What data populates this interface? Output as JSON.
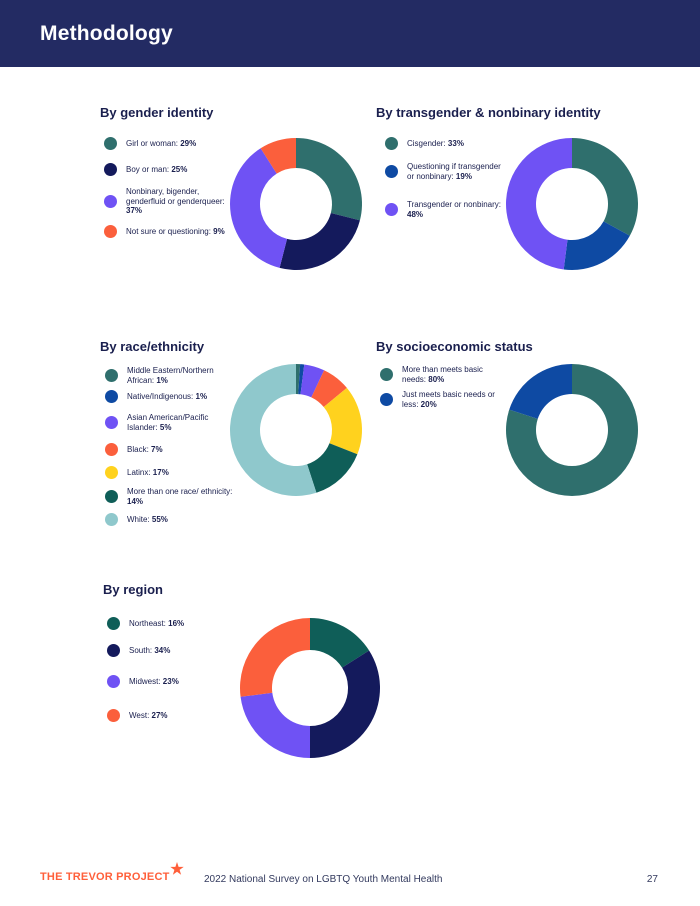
{
  "header": {
    "title": "Methodology"
  },
  "colors": {
    "header_bg": "#232b63",
    "teal": "#2f6f6d",
    "navy": "#141a5c",
    "purple": "#6f52f4",
    "coral": "#fb5f3c",
    "blue": "#0e4aa3",
    "yellow": "#ffd21e",
    "darkteal": "#0f5e58",
    "lightteal": "#8fc8cc",
    "brand": "#ff5f3a"
  },
  "sections": {
    "gender": {
      "title": "By gender identity",
      "items": [
        {
          "label": "Girl or woman: ",
          "value": "29%",
          "color": "#2f6f6d"
        },
        {
          "label": "Boy or man: ",
          "value": "25%",
          "color": "#141a5c"
        },
        {
          "label": "Nonbinary, bigender, genderfluid or genderqueer: ",
          "value": "37%",
          "color": "#6f52f4"
        },
        {
          "label": "Not sure or questioning: ",
          "value": "9%",
          "color": "#fb5f3c"
        }
      ]
    },
    "trans": {
      "title": "By transgender & nonbinary identity",
      "items": [
        {
          "label": "Cisgender: ",
          "value": "33%",
          "color": "#2f6f6d"
        },
        {
          "label": "Questioning if transgender or nonbinary: ",
          "value": "19%",
          "color": "#0e4aa3"
        },
        {
          "label": "Transgender or nonbinary: ",
          "value": "48%",
          "color": "#6f52f4"
        }
      ]
    },
    "race": {
      "title": "By race/ethnicity",
      "items": [
        {
          "label": "Middle Eastern/Northern African: ",
          "value": "1%",
          "color": "#2f6f6d"
        },
        {
          "label": "Native/Indigenous: ",
          "value": "1%",
          "color": "#0e4aa3"
        },
        {
          "label": "Asian American/Pacific Islander: ",
          "value": "5%",
          "color": "#6f52f4"
        },
        {
          "label": "Black: ",
          "value": "7%",
          "color": "#fb5f3c"
        },
        {
          "label": "Latinx: ",
          "value": "17%",
          "color": "#ffd21e"
        },
        {
          "label": "More than one race/ ethnicity: ",
          "value": "14%",
          "color": "#0f5e58"
        },
        {
          "label": "White: ",
          "value": "55%",
          "color": "#8fc8cc"
        }
      ]
    },
    "ses": {
      "title": "By socioeconomic status",
      "items": [
        {
          "label": "More than meets basic needs: ",
          "value": "80%",
          "color": "#2f6f6d"
        },
        {
          "label": "Just meets basic needs or less: ",
          "value": "20%",
          "color": "#0e4aa3"
        }
      ]
    },
    "region": {
      "title": "By region",
      "items": [
        {
          "label": "Northeast: ",
          "value": "16%",
          "color": "#0f5e58"
        },
        {
          "label": "South: ",
          "value": "34%",
          "color": "#141a5c"
        },
        {
          "label": "Midwest: ",
          "value": "23%",
          "color": "#6f52f4"
        },
        {
          "label": "West: ",
          "value": "27%",
          "color": "#fb5f3c"
        }
      ]
    }
  },
  "chart_data": [
    {
      "type": "pie",
      "title": "By gender identity",
      "categories": [
        "Girl or woman",
        "Boy or man",
        "Nonbinary, bigender, genderfluid or genderqueer",
        "Not sure or questioning"
      ],
      "values": [
        29,
        25,
        37,
        9
      ]
    },
    {
      "type": "pie",
      "title": "By transgender & nonbinary identity",
      "categories": [
        "Cisgender",
        "Questioning if transgender or nonbinary",
        "Transgender or nonbinary"
      ],
      "values": [
        33,
        19,
        48
      ]
    },
    {
      "type": "pie",
      "title": "By race/ethnicity",
      "categories": [
        "Middle Eastern/Northern African",
        "Native/Indigenous",
        "Asian American/Pacific Islander",
        "Black",
        "Latinx",
        "More than one race/ ethnicity",
        "White"
      ],
      "values": [
        1,
        1,
        5,
        7,
        17,
        14,
        55
      ]
    },
    {
      "type": "pie",
      "title": "By socioeconomic status",
      "categories": [
        "More than meets basic needs",
        "Just meets basic needs or less"
      ],
      "values": [
        80,
        20
      ]
    },
    {
      "type": "pie",
      "title": "By region",
      "categories": [
        "Northeast",
        "South",
        "Midwest",
        "West"
      ],
      "values": [
        16,
        34,
        23,
        27
      ]
    }
  ],
  "footer": {
    "logo": "THE TREVOR PROJECT",
    "text": "2022 National Survey on LGBTQ Youth Mental Health",
    "page": "27"
  }
}
